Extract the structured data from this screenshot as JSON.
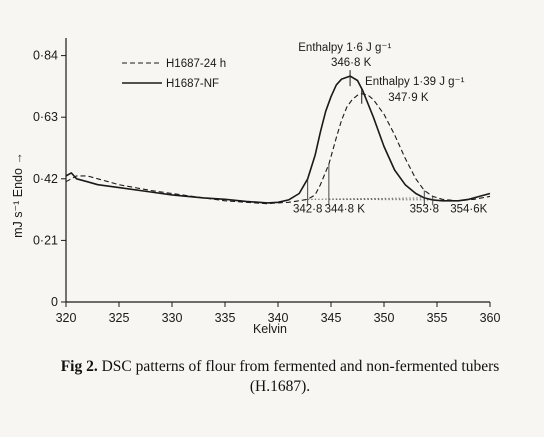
{
  "chart_data": {
    "type": "line",
    "title": "",
    "xlabel": "Kelvin",
    "ylabel": "mJ s⁻¹   Endo →",
    "xlim": [
      320,
      360
    ],
    "ylim": [
      0,
      0.9
    ],
    "xticks": [
      320,
      325,
      330,
      335,
      340,
      345,
      350,
      355,
      360
    ],
    "xtick_labels": [
      "320",
      "325",
      "330",
      "335",
      "340",
      "345",
      "350",
      "355",
      "360"
    ],
    "yticks": [
      0,
      0.21,
      0.42,
      0.63,
      0.84
    ],
    "ytick_labels": [
      "0",
      "0·21",
      "0·42",
      "0·63",
      "0·84"
    ],
    "grid": false,
    "legend": "top-left",
    "series": [
      {
        "name": "H1687-24 h",
        "style": "dashed",
        "x": [
          320,
          321,
          322,
          323,
          325,
          328,
          330,
          333,
          335,
          337,
          339,
          340,
          341,
          342,
          342.8,
          343.5,
          344,
          344.8,
          345.5,
          346,
          346.5,
          347,
          347.5,
          347.9,
          348.5,
          349,
          350,
          351,
          352,
          353,
          353.8,
          354.6,
          355.5,
          357,
          358.5,
          360
        ],
        "y": [
          0.41,
          0.43,
          0.43,
          0.42,
          0.4,
          0.38,
          0.37,
          0.355,
          0.345,
          0.34,
          0.335,
          0.338,
          0.34,
          0.345,
          0.35,
          0.365,
          0.4,
          0.47,
          0.56,
          0.62,
          0.665,
          0.69,
          0.705,
          0.71,
          0.705,
          0.69,
          0.64,
          0.57,
          0.49,
          0.42,
          0.38,
          0.36,
          0.35,
          0.345,
          0.35,
          0.36
        ]
      },
      {
        "name": "H1687-NF",
        "style": "solid",
        "x": [
          320,
          320.5,
          321,
          322,
          323,
          325,
          328,
          330,
          333,
          335,
          337,
          339,
          340,
          341,
          342,
          342.8,
          343.5,
          344,
          344.5,
          345,
          345.5,
          346,
          346.8,
          347.5,
          348,
          349,
          350,
          351,
          352,
          353,
          353.8,
          354.6,
          355.5,
          357,
          358,
          359,
          360
        ],
        "y": [
          0.43,
          0.44,
          0.42,
          0.41,
          0.4,
          0.39,
          0.375,
          0.365,
          0.355,
          0.35,
          0.343,
          0.338,
          0.34,
          0.348,
          0.37,
          0.42,
          0.5,
          0.58,
          0.65,
          0.7,
          0.74,
          0.76,
          0.77,
          0.755,
          0.72,
          0.63,
          0.53,
          0.45,
          0.4,
          0.37,
          0.355,
          0.348,
          0.345,
          0.345,
          0.35,
          0.36,
          0.37
        ]
      }
    ],
    "peak_markers": [
      {
        "x": 346.8,
        "y": 0.77,
        "series": "H1687-NF"
      },
      {
        "x": 347.9,
        "y": 0.71,
        "series": "H1687-24 h"
      }
    ],
    "baselines": [
      {
        "x": [
          342.8,
          353.8
        ],
        "y": [
          0.35,
          0.355
        ],
        "style": "dotted"
      },
      {
        "x": [
          344.8,
          354.6
        ],
        "y": [
          0.35,
          0.348
        ],
        "style": "dotted"
      }
    ],
    "onset_markers": [
      {
        "x": 342.8,
        "y0": 0.33,
        "y1": 0.42
      },
      {
        "x": 344.8,
        "y0": 0.33,
        "y1": 0.47
      },
      {
        "x": 353.8,
        "y0": 0.33,
        "y1": 0.38
      },
      {
        "x": 354.6,
        "y0": 0.33,
        "y1": 0.36
      }
    ],
    "annotations": [
      {
        "text": "Enthalpy 1·6 J g⁻¹",
        "x": 346.3,
        "y": 0.855
      },
      {
        "text": "346·8 K",
        "x": 346.9,
        "y": 0.805
      },
      {
        "text": "Enthalpy 1·39 J g⁻¹",
        "x": 352.9,
        "y": 0.74
      },
      {
        "text": "347·9 K",
        "x": 352.3,
        "y": 0.685
      },
      {
        "text": "342·8",
        "x": 342.8,
        "y": 0.305
      },
      {
        "text": "344·8 K",
        "x": 346.3,
        "y": 0.305
      },
      {
        "text": "353·8",
        "x": 353.8,
        "y": 0.305
      },
      {
        "text": "354·6K",
        "x": 358.0,
        "y": 0.305
      }
    ]
  },
  "caption": {
    "label": "Fig 2.",
    "text": "DSC patterns of flour from fermented and non-fermented tubers (H.1687)."
  }
}
